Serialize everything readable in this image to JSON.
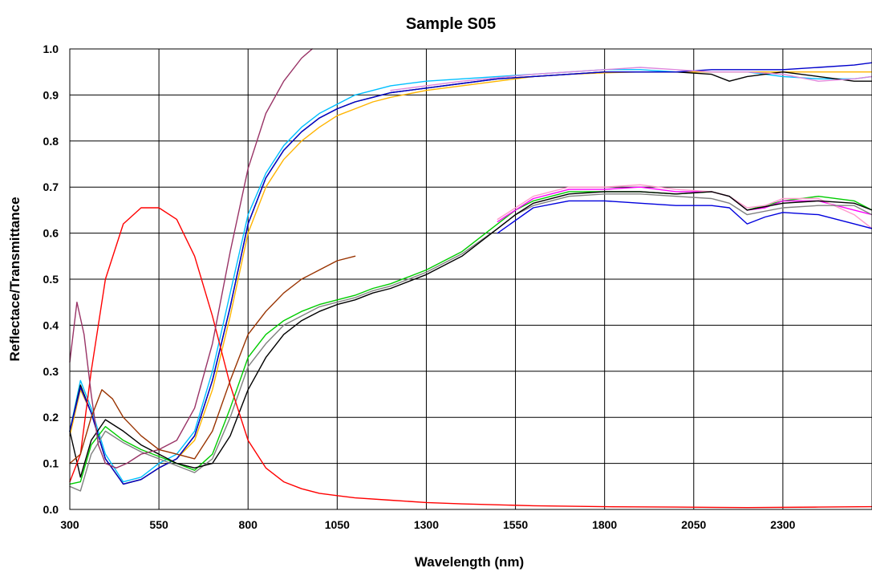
{
  "chart_data": {
    "type": "line",
    "title": "Sample S05",
    "xlabel": "Wavelength (nm)",
    "ylabel": "Reflectace/Transmittance",
    "xlim": [
      300,
      2550
    ],
    "ylim": [
      0,
      1
    ],
    "grid": true,
    "legend": "none",
    "x_ticks": [
      300,
      550,
      800,
      1050,
      1300,
      1550,
      1800,
      2050,
      2300
    ],
    "y_ticks": [
      0,
      0.1,
      0.2,
      0.3,
      0.4,
      0.5,
      0.6,
      0.7,
      0.8,
      0.9,
      1.0
    ],
    "x_tick_labels": [
      "300",
      "550",
      "800",
      "1050",
      "1300",
      "1550",
      "1800",
      "2050",
      "2300"
    ],
    "y_tick_labels": [
      "0.0",
      "0.1",
      "0.2",
      "0.3",
      "0.4",
      "0.5",
      "0.6",
      "0.7",
      "0.8",
      "0.9",
      "1.0"
    ],
    "series": [
      {
        "color": "#00BFFF",
        "x": [
          300,
          330,
          360,
          400,
          450,
          500,
          550,
          600,
          650,
          700,
          750,
          800,
          850,
          900,
          950,
          1000,
          1050,
          1100,
          1150,
          1200,
          1300,
          1400,
          1500,
          1600,
          1700,
          1800,
          1900,
          2000,
          2100,
          2200,
          2300,
          2400,
          2500,
          2550
        ],
        "y": [
          0.17,
          0.28,
          0.22,
          0.12,
          0.06,
          0.07,
          0.1,
          0.12,
          0.17,
          0.3,
          0.47,
          0.64,
          0.73,
          0.79,
          0.83,
          0.86,
          0.88,
          0.9,
          0.91,
          0.92,
          0.93,
          0.935,
          0.94,
          0.945,
          0.95,
          0.955,
          0.955,
          0.95,
          0.95,
          0.95,
          0.94,
          0.935,
          0.935,
          0.94
        ]
      },
      {
        "color": "#FFB400",
        "x": [
          300,
          330,
          360,
          400,
          450,
          500,
          550,
          600,
          650,
          700,
          750,
          800,
          850,
          900,
          950,
          1000,
          1050,
          1100,
          1150,
          1200,
          1300,
          1400,
          1500,
          1600,
          1700,
          1800,
          1900,
          2000,
          2100,
          2200,
          2300,
          2400,
          2500,
          2550
        ],
        "y": [
          0.16,
          0.26,
          0.21,
          0.11,
          0.055,
          0.065,
          0.09,
          0.11,
          0.15,
          0.26,
          0.42,
          0.6,
          0.7,
          0.76,
          0.8,
          0.83,
          0.855,
          0.87,
          0.885,
          0.895,
          0.91,
          0.92,
          0.93,
          0.94,
          0.945,
          0.948,
          0.95,
          0.95,
          0.95,
          0.95,
          0.95,
          0.95,
          0.95,
          0.95
        ]
      },
      {
        "color": "#000000",
        "x": [
          300,
          330,
          360,
          400,
          450,
          500,
          550,
          600,
          650,
          700,
          750,
          800,
          850,
          900,
          950,
          1000,
          1050,
          1100,
          1150,
          1200,
          1300,
          1400,
          1500,
          1600,
          1700,
          1800,
          1900,
          2000,
          2100,
          2150,
          2200,
          2300,
          2400,
          2500,
          2550
        ],
        "y": [
          0.17,
          0.27,
          0.21,
          0.11,
          0.055,
          0.065,
          0.09,
          0.11,
          0.16,
          0.28,
          0.44,
          0.62,
          0.72,
          0.78,
          0.82,
          0.85,
          0.87,
          0.885,
          0.895,
          0.905,
          0.915,
          0.925,
          0.935,
          0.94,
          0.945,
          0.95,
          0.95,
          0.95,
          0.945,
          0.93,
          0.94,
          0.95,
          0.94,
          0.93,
          0.93
        ]
      },
      {
        "color": "#0000CC",
        "x": [
          300,
          330,
          360,
          400,
          450,
          500,
          550,
          600,
          650,
          700,
          750,
          800,
          850,
          900,
          950,
          1000,
          1050,
          1100,
          1150,
          1200,
          1300,
          1400,
          1500,
          1600,
          1700,
          1800,
          1900,
          2000,
          2100,
          2200,
          2300,
          2400,
          2500,
          2550
        ],
        "y": [
          0.17,
          0.265,
          0.21,
          0.11,
          0.055,
          0.065,
          0.09,
          0.11,
          0.16,
          0.28,
          0.44,
          0.62,
          0.72,
          0.78,
          0.82,
          0.85,
          0.87,
          0.885,
          0.895,
          0.905,
          0.915,
          0.925,
          0.935,
          0.94,
          0.945,
          0.95,
          0.95,
          0.95,
          0.955,
          0.955,
          0.955,
          0.96,
          0.965,
          0.97
        ]
      },
      {
        "color": "#DD88DD",
        "x": [
          1200,
          1400,
          1600,
          1800,
          1900,
          2000,
          2100,
          2200,
          2300,
          2400,
          2500,
          2550
        ],
        "y": [
          0.91,
          0.93,
          0.945,
          0.955,
          0.96,
          0.955,
          0.95,
          0.95,
          0.945,
          0.93,
          0.935,
          0.94
        ]
      },
      {
        "color": "#00CC00",
        "x": [
          300,
          330,
          360,
          400,
          450,
          500,
          550,
          600,
          650,
          700,
          750,
          800,
          850,
          900,
          950,
          1000,
          1050,
          1100,
          1150,
          1200,
          1300,
          1400,
          1500,
          1550,
          1600,
          1700,
          1800,
          1900,
          2000,
          2100,
          2150,
          2200,
          2250,
          2300,
          2400,
          2500,
          2550
        ],
        "y": [
          0.055,
          0.06,
          0.14,
          0.18,
          0.15,
          0.13,
          0.115,
          0.1,
          0.085,
          0.12,
          0.22,
          0.33,
          0.38,
          0.41,
          0.43,
          0.445,
          0.455,
          0.465,
          0.48,
          0.49,
          0.52,
          0.56,
          0.62,
          0.65,
          0.67,
          0.69,
          0.69,
          0.69,
          0.685,
          0.69,
          0.68,
          0.65,
          0.66,
          0.67,
          0.68,
          0.67,
          0.65
        ]
      },
      {
        "color": "#FF00FF",
        "x": [
          1500,
          1600,
          1700,
          1800,
          1900,
          2000,
          2100,
          2150,
          2200,
          2250,
          2300,
          2400,
          2500,
          2550
        ],
        "y": [
          0.625,
          0.675,
          0.695,
          0.695,
          0.7,
          0.69,
          0.69,
          0.68,
          0.65,
          0.655,
          0.67,
          0.67,
          0.65,
          0.64
        ]
      },
      {
        "color": "#FF99CC",
        "x": [
          1500,
          1600,
          1700,
          1800,
          1900,
          2000,
          2100,
          2150,
          2200,
          2250,
          2300,
          2400,
          2500,
          2550
        ],
        "y": [
          0.63,
          0.68,
          0.7,
          0.7,
          0.705,
          0.695,
          0.69,
          0.68,
          0.655,
          0.66,
          0.675,
          0.675,
          0.64,
          0.61
        ]
      },
      {
        "color": "#808080",
        "x": [
          300,
          330,
          360,
          400,
          450,
          500,
          550,
          600,
          650,
          700,
          750,
          800,
          850,
          900,
          950,
          1000,
          1050,
          1100,
          1150,
          1200,
          1300,
          1400,
          1500,
          1550,
          1600,
          1700,
          1800,
          1900,
          2000,
          2100,
          2150,
          2200,
          2300,
          2400,
          2500,
          2550
        ],
        "y": [
          0.05,
          0.04,
          0.12,
          0.17,
          0.145,
          0.125,
          0.11,
          0.095,
          0.08,
          0.11,
          0.2,
          0.31,
          0.36,
          0.4,
          0.42,
          0.44,
          0.45,
          0.46,
          0.475,
          0.485,
          0.515,
          0.555,
          0.61,
          0.64,
          0.66,
          0.68,
          0.685,
          0.685,
          0.68,
          0.675,
          0.665,
          0.64,
          0.655,
          0.66,
          0.66,
          0.64
        ]
      },
      {
        "color": "#000000",
        "x": [
          300,
          330,
          360,
          400,
          450,
          500,
          550,
          600,
          650,
          700,
          750,
          800,
          850,
          900,
          950,
          1000,
          1050,
          1100,
          1150,
          1200,
          1300,
          1400,
          1500,
          1550,
          1600,
          1700,
          1800,
          1900,
          2000,
          2100,
          2150,
          2200,
          2300,
          2400,
          2500,
          2550
        ],
        "y": [
          0.17,
          0.07,
          0.15,
          0.195,
          0.17,
          0.14,
          0.12,
          0.1,
          0.09,
          0.1,
          0.16,
          0.26,
          0.33,
          0.38,
          0.41,
          0.43,
          0.445,
          0.455,
          0.47,
          0.48,
          0.51,
          0.55,
          0.61,
          0.64,
          0.665,
          0.685,
          0.69,
          0.69,
          0.685,
          0.69,
          0.68,
          0.65,
          0.665,
          0.67,
          0.665,
          0.65
        ]
      },
      {
        "color": "#0000DD",
        "x": [
          1500,
          1600,
          1700,
          1800,
          1900,
          2000,
          2100,
          2150,
          2200,
          2250,
          2300,
          2400,
          2500,
          2550
        ],
        "y": [
          0.6,
          0.655,
          0.67,
          0.67,
          0.665,
          0.66,
          0.66,
          0.655,
          0.62,
          0.635,
          0.645,
          0.64,
          0.62,
          0.61
        ]
      },
      {
        "color": "#FF0000",
        "x": [
          300,
          330,
          360,
          400,
          450,
          500,
          550,
          600,
          650,
          700,
          750,
          800,
          850,
          900,
          950,
          1000,
          1050,
          1100,
          1200,
          1300,
          1400,
          1600,
          1800,
          2000,
          2200,
          2400,
          2550
        ],
        "y": [
          0.06,
          0.12,
          0.3,
          0.5,
          0.62,
          0.655,
          0.655,
          0.63,
          0.55,
          0.42,
          0.27,
          0.15,
          0.09,
          0.06,
          0.045,
          0.035,
          0.03,
          0.025,
          0.02,
          0.015,
          0.012,
          0.008,
          0.006,
          0.005,
          0.004,
          0.005,
          0.006
        ]
      },
      {
        "color": "#993366",
        "x": [
          300,
          320,
          340,
          360,
          380,
          400,
          430,
          460,
          500,
          550,
          600,
          650,
          700,
          750,
          800,
          850,
          900,
          950,
          980
        ],
        "y": [
          0.32,
          0.45,
          0.38,
          0.25,
          0.14,
          0.1,
          0.09,
          0.1,
          0.12,
          0.13,
          0.15,
          0.22,
          0.36,
          0.56,
          0.74,
          0.86,
          0.93,
          0.98,
          1.0
        ]
      },
      {
        "color": "#993300",
        "x": [
          300,
          330,
          360,
          390,
          420,
          450,
          500,
          550,
          600,
          650,
          700,
          750,
          800,
          850,
          900,
          950,
          1000,
          1050,
          1100
        ],
        "y": [
          0.1,
          0.12,
          0.2,
          0.26,
          0.24,
          0.2,
          0.16,
          0.13,
          0.12,
          0.11,
          0.17,
          0.28,
          0.38,
          0.43,
          0.47,
          0.5,
          0.52,
          0.54,
          0.55
        ]
      }
    ]
  }
}
